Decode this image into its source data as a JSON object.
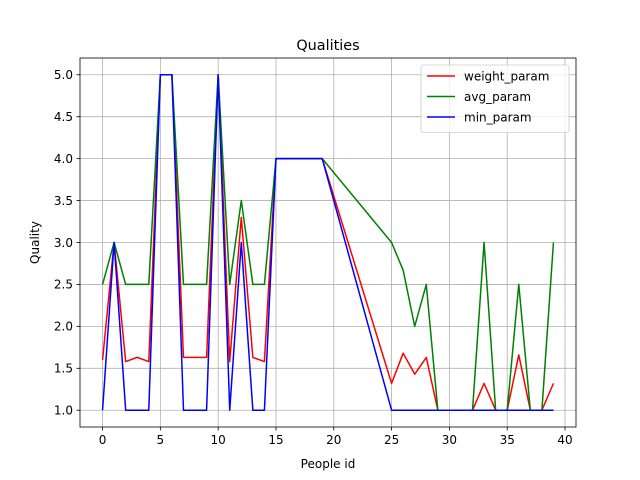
{
  "chart_data": {
    "type": "line",
    "title": "Qualities",
    "xlabel": "People id",
    "ylabel": "Quality",
    "xlim": [
      -1.95,
      40.95
    ],
    "ylim": [
      0.8,
      5.2
    ],
    "xticks": [
      0,
      5,
      10,
      15,
      20,
      25,
      30,
      35,
      40
    ],
    "xtick_labels": [
      "0",
      "5",
      "10",
      "15",
      "20",
      "25",
      "30",
      "35",
      "40"
    ],
    "yticks": [
      1.0,
      1.5,
      2.0,
      2.5,
      3.0,
      3.5,
      4.0,
      4.5,
      5.0
    ],
    "ytick_labels": [
      "1.0",
      "1.5",
      "2.0",
      "2.5",
      "3.0",
      "3.5",
      "4.0",
      "4.5",
      "5.0"
    ],
    "grid": true,
    "legend_position": "top-right",
    "series": [
      {
        "name": "weight_param",
        "color": "#ff0000",
        "x": [
          0,
          1,
          2,
          3,
          4,
          5,
          6,
          7,
          8,
          9,
          10,
          11,
          12,
          13,
          14,
          15,
          16,
          17,
          18,
          19,
          25,
          26,
          27,
          28,
          29,
          30,
          31,
          32,
          33,
          34,
          35,
          36,
          37,
          38,
          39
        ],
        "y": [
          1.6,
          3.0,
          1.58,
          1.63,
          1.58,
          5.0,
          5.0,
          1.63,
          1.63,
          1.63,
          5.0,
          1.58,
          3.3,
          1.63,
          1.58,
          4.0,
          4.0,
          4.0,
          4.0,
          4.0,
          1.32,
          1.68,
          1.43,
          1.63,
          1.0,
          1.0,
          1.0,
          1.0,
          1.32,
          1.0,
          1.0,
          1.66,
          1.0,
          1.0,
          1.32
        ]
      },
      {
        "name": "avg_param",
        "color": "#008000",
        "x": [
          0,
          1,
          2,
          3,
          4,
          5,
          6,
          7,
          8,
          9,
          10,
          11,
          12,
          13,
          14,
          15,
          16,
          17,
          18,
          19,
          25,
          26,
          27,
          28,
          29,
          30,
          31,
          32,
          33,
          34,
          35,
          36,
          37,
          38,
          39
        ],
        "y": [
          2.5,
          3.0,
          2.5,
          2.5,
          2.5,
          5.0,
          5.0,
          2.5,
          2.5,
          2.5,
          5.0,
          2.5,
          3.5,
          2.5,
          2.5,
          4.0,
          4.0,
          4.0,
          4.0,
          4.0,
          3.0,
          2.67,
          2.0,
          2.5,
          1.0,
          1.0,
          1.0,
          1.0,
          3.0,
          1.0,
          1.0,
          2.5,
          1.0,
          1.0,
          3.0
        ]
      },
      {
        "name": "min_param",
        "color": "#0000ff",
        "x": [
          0,
          1,
          2,
          3,
          4,
          5,
          6,
          7,
          8,
          9,
          10,
          11,
          12,
          13,
          14,
          15,
          16,
          17,
          18,
          19,
          25,
          26,
          27,
          28,
          29,
          30,
          31,
          32,
          33,
          34,
          35,
          36,
          37,
          38,
          39
        ],
        "y": [
          1.0,
          3.0,
          1.0,
          1.0,
          1.0,
          5.0,
          5.0,
          1.0,
          1.0,
          1.0,
          5.0,
          1.0,
          3.0,
          1.0,
          1.0,
          4.0,
          4.0,
          4.0,
          4.0,
          4.0,
          1.0,
          1.0,
          1.0,
          1.0,
          1.0,
          1.0,
          1.0,
          1.0,
          1.0,
          1.0,
          1.0,
          1.0,
          1.0,
          1.0,
          1.0
        ]
      }
    ]
  }
}
